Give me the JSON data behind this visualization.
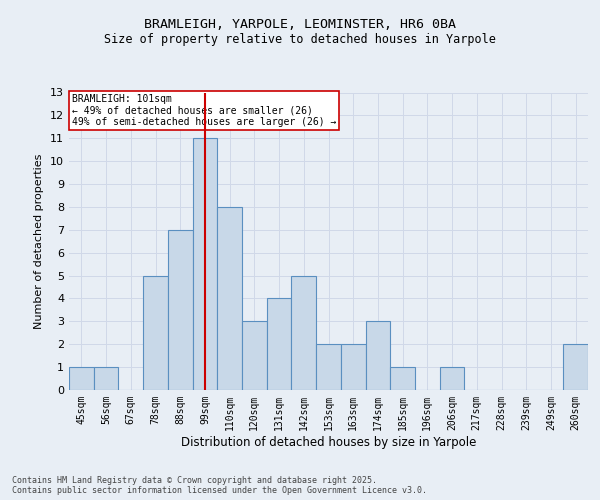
{
  "title_line1": "BRAMLEIGH, YARPOLE, LEOMINSTER, HR6 0BA",
  "title_line2": "Size of property relative to detached houses in Yarpole",
  "xlabel": "Distribution of detached houses by size in Yarpole",
  "ylabel": "Number of detached properties",
  "categories": [
    "45sqm",
    "56sqm",
    "67sqm",
    "78sqm",
    "88sqm",
    "99sqm",
    "110sqm",
    "120sqm",
    "131sqm",
    "142sqm",
    "153sqm",
    "163sqm",
    "174sqm",
    "185sqm",
    "196sqm",
    "206sqm",
    "217sqm",
    "228sqm",
    "239sqm",
    "249sqm",
    "260sqm"
  ],
  "values": [
    1,
    1,
    0,
    5,
    7,
    11,
    8,
    3,
    4,
    5,
    2,
    2,
    3,
    1,
    0,
    1,
    0,
    0,
    0,
    0,
    2
  ],
  "bar_color": "#c8d8e8",
  "bar_edge_color": "#5a8fc0",
  "vline_x": 5,
  "vline_color": "#cc0000",
  "annotation_text": "BRAMLEIGH: 101sqm\n← 49% of detached houses are smaller (26)\n49% of semi-detached houses are larger (26) →",
  "annotation_box_color": "#ffffff",
  "annotation_box_edge_color": "#cc0000",
  "ylim": [
    0,
    13
  ],
  "yticks": [
    0,
    1,
    2,
    3,
    4,
    5,
    6,
    7,
    8,
    9,
    10,
    11,
    12,
    13
  ],
  "grid_color": "#d0d8e8",
  "background_color": "#e8eef5",
  "footer": "Contains HM Land Registry data © Crown copyright and database right 2025.\nContains public sector information licensed under the Open Government Licence v3.0.",
  "figsize": [
    6.0,
    5.0
  ],
  "dpi": 100
}
